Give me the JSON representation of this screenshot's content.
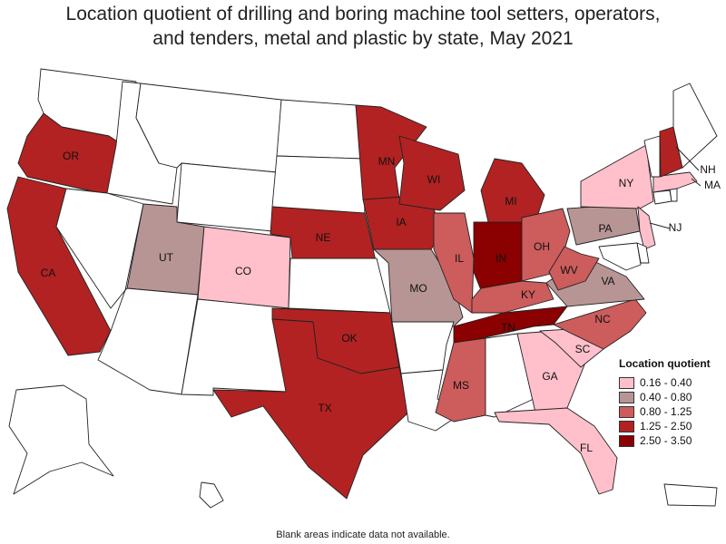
{
  "title": {
    "line1": "Location quotient of drilling and boring machine tool setters, operators,",
    "line2": "and tenders, metal and plastic by state, May 2021"
  },
  "legend": {
    "title": "Location quotient",
    "items": [
      {
        "label": "0.16 - 0.40",
        "color": "#ffc0cb"
      },
      {
        "label": "0.40 - 0.80",
        "color": "#b89595"
      },
      {
        "label": "0.80 - 1.25",
        "color": "#cd5c5c"
      },
      {
        "label": "1.25 - 2.50",
        "color": "#b22222"
      },
      {
        "label": "2.50 - 3.50",
        "color": "#8b0000"
      }
    ]
  },
  "no_data_color": "#ffffff",
  "footnote": "Blank areas indicate data not available.",
  "states": {
    "WA": {
      "label": "",
      "class": null
    },
    "OR": {
      "label": "OR",
      "class": 3
    },
    "CA": {
      "label": "CA",
      "class": 3
    },
    "ID": {
      "label": "",
      "class": null
    },
    "NV": {
      "label": "",
      "class": null
    },
    "MT": {
      "label": "",
      "class": null
    },
    "WY": {
      "label": "",
      "class": null
    },
    "UT": {
      "label": "UT",
      "class": 1
    },
    "AZ": {
      "label": "",
      "class": null
    },
    "CO": {
      "label": "CO",
      "class": 0
    },
    "NM": {
      "label": "",
      "class": null
    },
    "ND": {
      "label": "",
      "class": null
    },
    "SD": {
      "label": "",
      "class": null
    },
    "NE": {
      "label": "NE",
      "class": 3
    },
    "KS": {
      "label": "",
      "class": null
    },
    "OK": {
      "label": "OK",
      "class": 3
    },
    "TX": {
      "label": "TX",
      "class": 3
    },
    "MN": {
      "label": "MN",
      "class": 3
    },
    "IA": {
      "label": "IA",
      "class": 3
    },
    "MO": {
      "label": "MO",
      "class": 1
    },
    "AR": {
      "label": "",
      "class": null
    },
    "LA": {
      "label": "",
      "class": null
    },
    "WI": {
      "label": "WI",
      "class": 3
    },
    "IL": {
      "label": "IL",
      "class": 2
    },
    "MI": {
      "label": "MI",
      "class": 3
    },
    "IN": {
      "label": "IN",
      "class": 4
    },
    "OH": {
      "label": "OH",
      "class": 2
    },
    "KY": {
      "label": "KY",
      "class": 2
    },
    "TN": {
      "label": "TN",
      "class": 4
    },
    "MS": {
      "label": "MS",
      "class": 2
    },
    "AL": {
      "label": "",
      "class": null
    },
    "GA": {
      "label": "GA",
      "class": 0
    },
    "FL": {
      "label": "FL",
      "class": 0
    },
    "SC": {
      "label": "SC",
      "class": 0
    },
    "NC": {
      "label": "NC",
      "class": 2
    },
    "VA": {
      "label": "VA",
      "class": 1
    },
    "WV": {
      "label": "WV",
      "class": 2
    },
    "PA": {
      "label": "PA",
      "class": 1
    },
    "NY": {
      "label": "NY",
      "class": 0
    },
    "NJ": {
      "label": "NJ",
      "class": 0
    },
    "DE": {
      "label": "",
      "class": null
    },
    "MD": {
      "label": "",
      "class": null
    },
    "CT": {
      "label": "",
      "class": null
    },
    "RI": {
      "label": "",
      "class": null
    },
    "MA": {
      "label": "MA",
      "class": 0
    },
    "VT": {
      "label": "",
      "class": null
    },
    "NH": {
      "label": "NH",
      "class": 3
    },
    "ME": {
      "label": "",
      "class": null
    },
    "AK": {
      "label": "",
      "class": null
    },
    "HI": {
      "label": "",
      "class": null
    },
    "PR": {
      "label": "",
      "class": null
    }
  }
}
